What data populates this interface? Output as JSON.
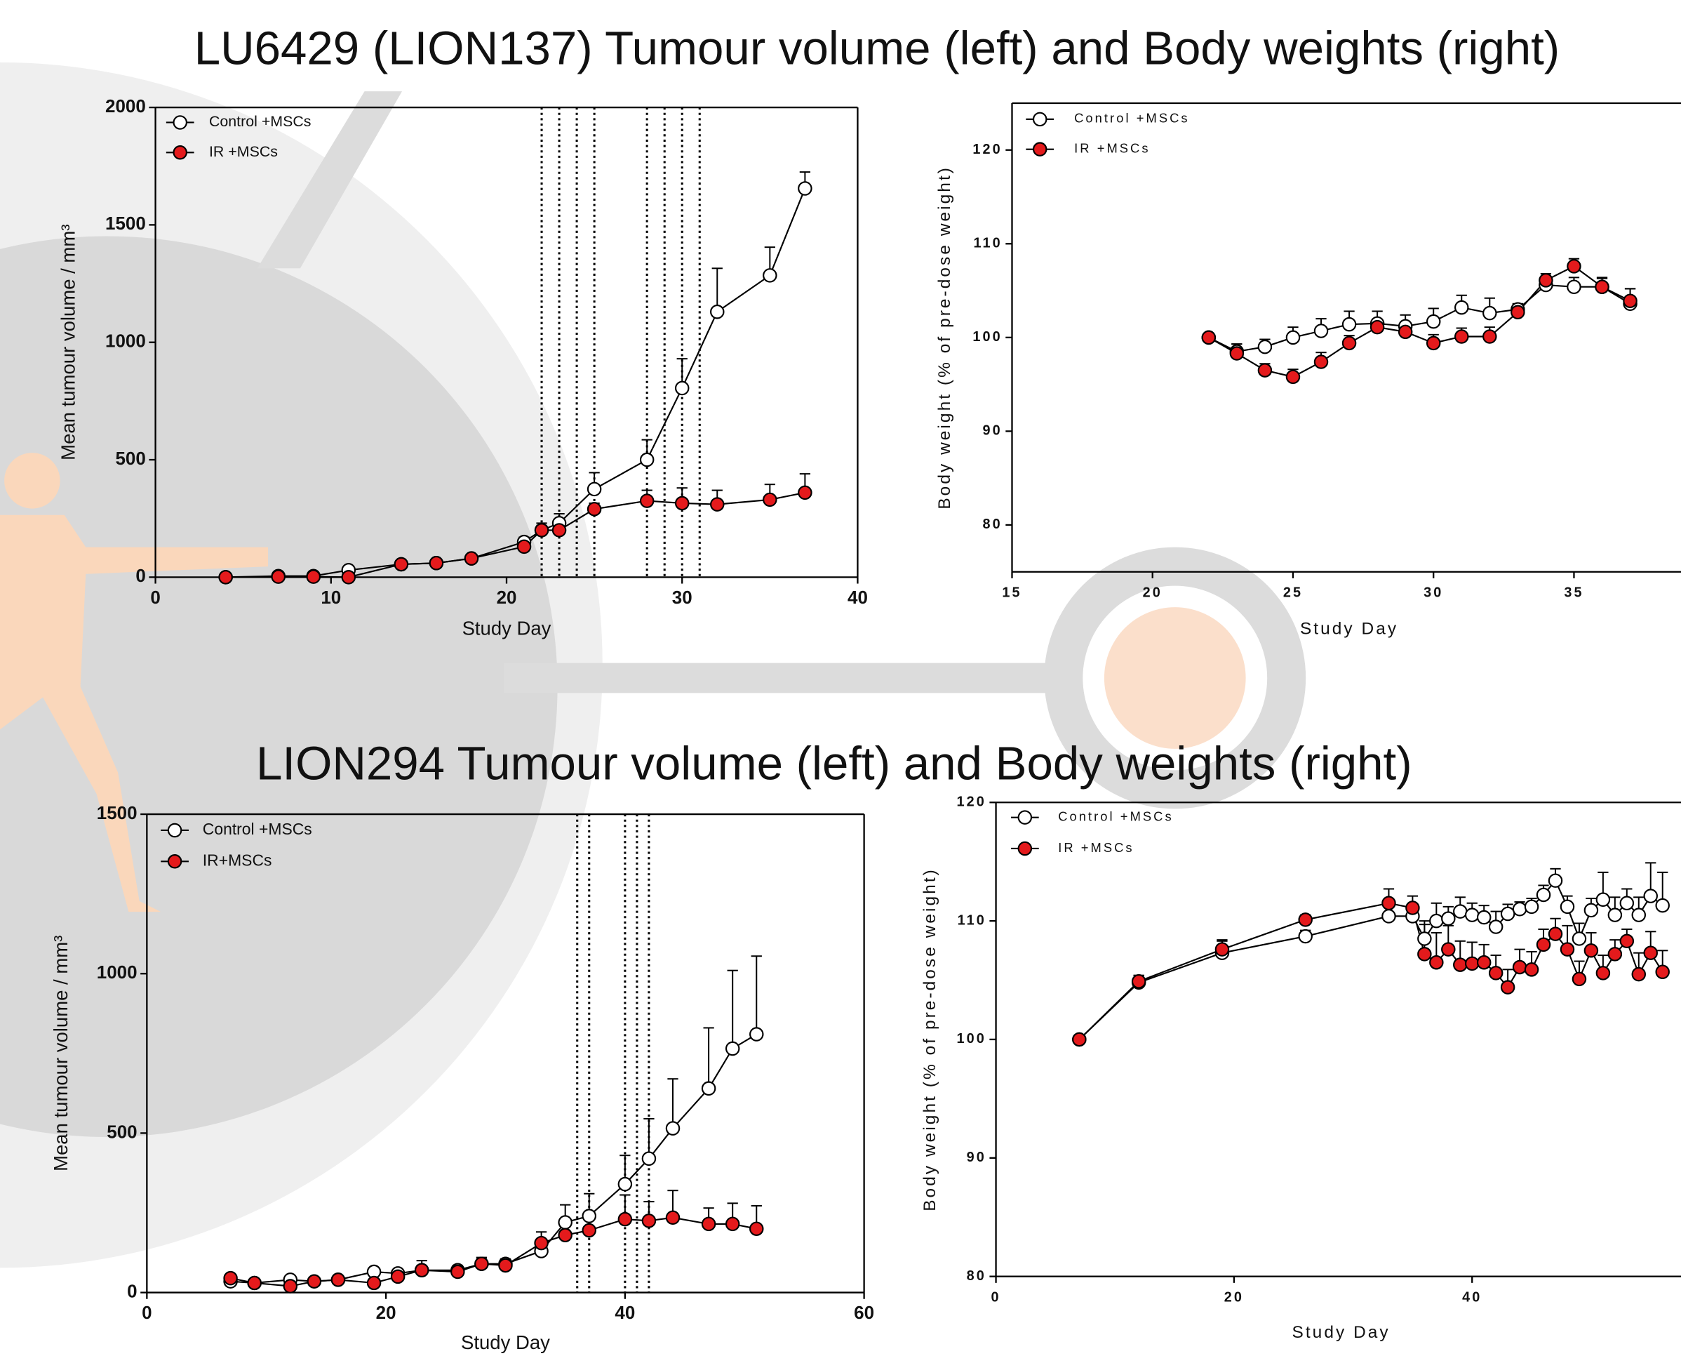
{
  "headings": [
    "LU6429 (LION137) Tumour volume (left) and Body weights (right)",
    "LION294 Tumour volume (left) and Body weights (right)"
  ],
  "chart_data": [
    {
      "type": "line",
      "xlabel": "Study Day",
      "ylabel": "Mean tumour volume / mm³",
      "xlim": [
        0,
        40
      ],
      "ylim": [
        0,
        2000
      ],
      "xticks": [
        0,
        10,
        20,
        30,
        40
      ],
      "yticks": [
        0,
        500,
        1000,
        1500,
        2000
      ],
      "vlines": [
        22,
        23,
        24,
        25,
        28,
        29,
        30,
        31
      ],
      "x": [
        4,
        7,
        9,
        11,
        14,
        16,
        18,
        21,
        22,
        23,
        25,
        28,
        30,
        32,
        35,
        37
      ],
      "series": [
        {
          "name": "Control +MSCs",
          "color": "#ffffff",
          "values": [
            0,
            5,
            5,
            30,
            55,
            60,
            80,
            150,
            200,
            230,
            375,
            500,
            805,
            1130,
            1285,
            1655
          ],
          "errors": [
            0,
            5,
            5,
            5,
            10,
            10,
            10,
            20,
            30,
            40,
            70,
            85,
            125,
            185,
            120,
            70
          ]
        },
        {
          "name": "IR +MSCs",
          "color": "#e41a1c",
          "values": [
            0,
            2,
            2,
            0,
            55,
            60,
            80,
            130,
            200,
            200,
            290,
            325,
            315,
            310,
            330,
            360
          ],
          "errors": [
            0,
            2,
            2,
            2,
            10,
            10,
            10,
            15,
            20,
            25,
            25,
            45,
            65,
            60,
            65,
            80
          ]
        }
      ]
    },
    {
      "type": "line",
      "xlabel": "Study Day",
      "ylabel": "Body weight (% of pre-dose weight)",
      "xlim": [
        15,
        39
      ],
      "ylim": [
        75,
        125
      ],
      "xticks": [
        15,
        20,
        25,
        30,
        35
      ],
      "yticks": [
        80,
        90,
        100,
        110,
        120
      ],
      "x": [
        22,
        23,
        24,
        25,
        26,
        27,
        28,
        29,
        30,
        31,
        32,
        33,
        34,
        35,
        36,
        37
      ],
      "series": [
        {
          "name": "Control +MSCs",
          "color": "#ffffff",
          "values": [
            100,
            98.5,
            99,
            100,
            100.7,
            101.4,
            101.5,
            101.2,
            101.7,
            103.2,
            102.6,
            103,
            105.6,
            105.4,
            105.4,
            103.6
          ],
          "errors": [
            0.3,
            0.8,
            0.8,
            1.1,
            1.3,
            1.4,
            1.3,
            1.2,
            1.4,
            1.3,
            1.6,
            0.6,
            0.8,
            1,
            1,
            1.6
          ]
        },
        {
          "name": "IR +MSCs",
          "color": "#e41a1c",
          "values": [
            100,
            98.3,
            96.5,
            95.8,
            97.4,
            99.4,
            101.1,
            100.6,
            99.4,
            100.1,
            100.1,
            102.7,
            106.1,
            107.6,
            105.4,
            103.9
          ],
          "errors": [
            0.3,
            1,
            0.7,
            0.8,
            1,
            0.8,
            0.8,
            0.9,
            0.9,
            0.9,
            1,
            0.8,
            0.7,
            0.8,
            0.9,
            1.3
          ]
        }
      ]
    },
    {
      "type": "line",
      "xlabel": "Study Day",
      "ylabel": "Mean tumour volume / mm³",
      "xlim": [
        0,
        60
      ],
      "ylim": [
        0,
        1500
      ],
      "xticks": [
        0,
        20,
        40,
        60
      ],
      "yticks": [
        0,
        500,
        1000,
        1500
      ],
      "vlines": [
        36,
        37,
        40,
        41,
        42
      ],
      "x": [
        7,
        9,
        12,
        14,
        16,
        19,
        21,
        23,
        26,
        28,
        30,
        33,
        35,
        37,
        40,
        42,
        44,
        47,
        49,
        51
      ],
      "series": [
        {
          "name": "Control +MSCs",
          "color": "#ffffff",
          "values": [
            35,
            30,
            40,
            35,
            40,
            65,
            60,
            70,
            70,
            90,
            90,
            130,
            220,
            240,
            340,
            420,
            515,
            640,
            765,
            810
          ],
          "errors": [
            5,
            5,
            5,
            5,
            5,
            10,
            10,
            15,
            15,
            15,
            15,
            20,
            55,
            70,
            90,
            125,
            155,
            190,
            245,
            245
          ]
        },
        {
          "name": "IR+MSCs",
          "color": "#e41a1c",
          "values": [
            45,
            30,
            20,
            35,
            40,
            30,
            50,
            70,
            65,
            90,
            85,
            155,
            180,
            195,
            230,
            225,
            235,
            215,
            215,
            200
          ],
          "errors": [
            5,
            5,
            5,
            5,
            5,
            5,
            10,
            30,
            15,
            20,
            20,
            35,
            30,
            40,
            76,
            60,
            85,
            50,
            65,
            72
          ]
        }
      ]
    },
    {
      "type": "line",
      "xlabel": "Study Day",
      "ylabel": "Body weight (% of pre-dose weight)",
      "xlim": [
        0,
        58
      ],
      "ylim": [
        80,
        120
      ],
      "xticks": [
        0,
        20,
        40
      ],
      "yticks": [
        80,
        90,
        100,
        110,
        120
      ],
      "x": [
        7,
        12,
        19,
        26,
        33,
        35,
        36,
        37,
        38,
        39,
        40,
        41,
        42,
        43,
        44,
        45,
        46,
        47,
        48,
        49,
        50,
        51,
        52,
        53,
        54,
        55,
        56
      ],
      "series": [
        {
          "name": "Control +MSCs",
          "color": "#ffffff",
          "values": [
            100,
            104.8,
            107.3,
            108.7,
            110.4,
            110.4,
            108.5,
            110,
            110.2,
            110.8,
            110.5,
            110.3,
            109.5,
            110.6,
            111,
            111.2,
            112.2,
            113.4,
            111.2,
            108.5,
            110.9,
            111.8,
            110.5,
            111.5,
            110.5,
            112.1,
            111.3
          ],
          "errors": [
            0.2,
            0.6,
            1,
            0.5,
            1.2,
            1,
            1.5,
            1.5,
            1,
            1.2,
            1,
            1,
            1.3,
            0.8,
            0.6,
            0.7,
            0.8,
            1,
            0.9,
            1.3,
            1,
            2.3,
            1.5,
            1.2,
            1.5,
            2.8,
            2.8
          ]
        },
        {
          "name": "IR +MSCs",
          "color": "#e41a1c",
          "values": [
            100,
            104.9,
            107.6,
            110.1,
            111.5,
            111.1,
            107.2,
            106.5,
            107.6,
            106.3,
            106.4,
            106.5,
            105.6,
            104.4,
            106.1,
            105.9,
            108,
            108.9,
            107.6,
            105.1,
            107.5,
            105.6,
            107.2,
            108.3,
            105.5,
            107.3,
            105.7
          ],
          "errors": [
            0.2,
            0.5,
            0.8,
            0.4,
            1.2,
            1,
            2.5,
            2.5,
            2,
            2,
            1.8,
            1.5,
            1.5,
            1.5,
            1.5,
            1.5,
            1.3,
            1.3,
            2,
            1.5,
            1.5,
            1.5,
            1.2,
            1,
            1.8,
            1.8,
            1.8
          ]
        }
      ]
    }
  ]
}
